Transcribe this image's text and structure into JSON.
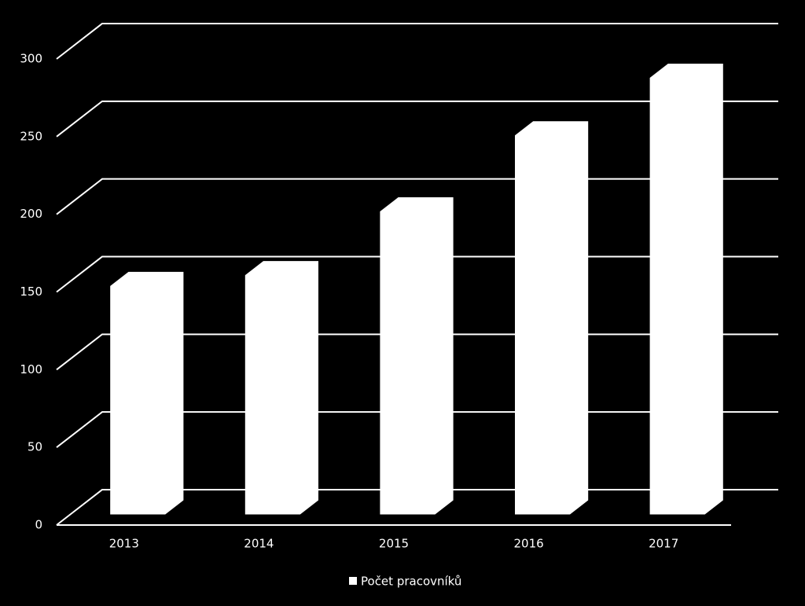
{
  "chart_data": {
    "type": "bar3d",
    "categories": [
      "2013",
      "2014",
      "2015",
      "2016",
      "2017"
    ],
    "series": [
      {
        "name": "Počet pracovníků",
        "color": "#ffffff",
        "values": [
          147,
          154,
          195,
          244,
          281
        ]
      }
    ],
    "ylim": [
      0,
      300
    ],
    "yticks": [
      0,
      50,
      100,
      150,
      200,
      250,
      300
    ],
    "grid": true,
    "legend": "bottom"
  }
}
